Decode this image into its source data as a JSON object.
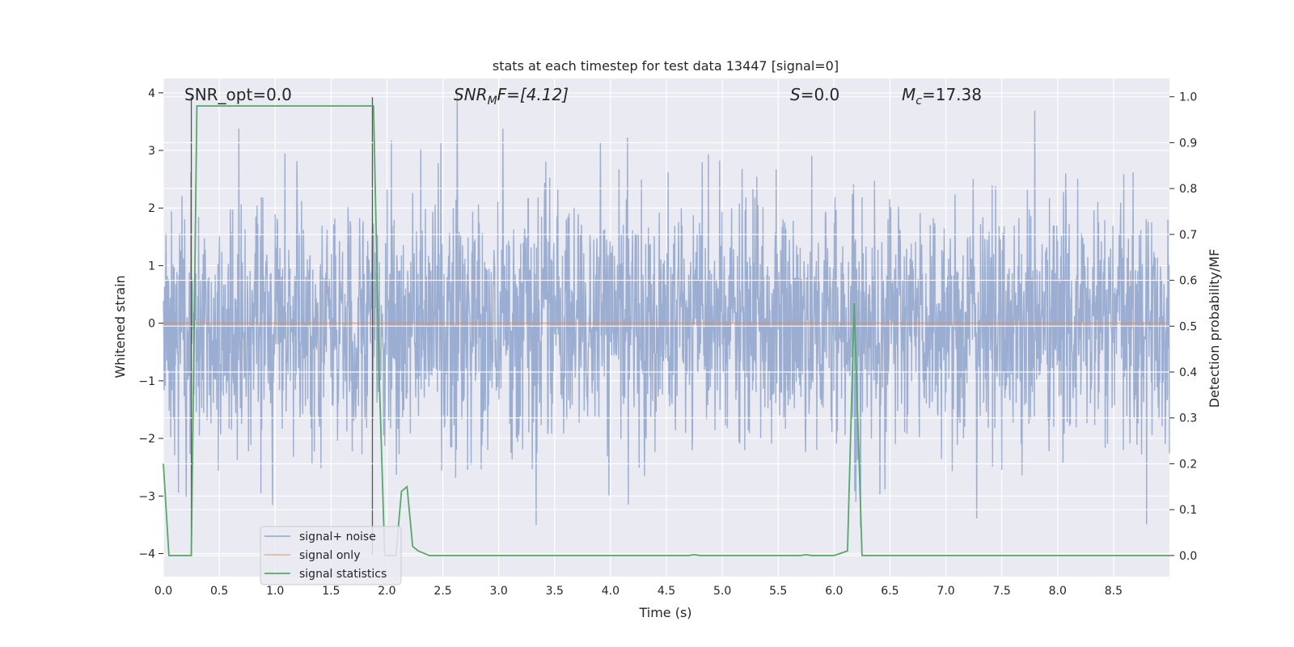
{
  "chart_data": {
    "type": "line",
    "title": "stats at each timestep for test data 13447 [signal=0]",
    "xlabel": "Time (s)",
    "ylabel_left": "Whitened strain",
    "ylabel_right": "Detection probability/MF",
    "xlim": [
      0.0,
      9.0
    ],
    "ylim_left": [
      -4.4,
      4.25
    ],
    "ylim_right": [
      -0.046,
      1.04
    ],
    "x_ticks": [
      "0.0",
      "0.5",
      "1.0",
      "1.5",
      "2.0",
      "2.5",
      "3.0",
      "3.5",
      "4.0",
      "4.5",
      "5.0",
      "5.5",
      "6.0",
      "6.5",
      "7.0",
      "7.5",
      "8.0",
      "8.5"
    ],
    "y_ticks_left": [
      "4",
      "3",
      "2",
      "1",
      "0",
      "−1",
      "−2",
      "−3",
      "−4"
    ],
    "y_ticks_right": [
      "1.0",
      "0.9",
      "0.8",
      "0.7",
      "0.6",
      "0.5",
      "0.4",
      "0.3",
      "0.2",
      "0.1",
      "0.0"
    ],
    "annotations": {
      "snr_opt": "SNR_opt=0.0",
      "snr_mf_sym": "SNR",
      "snr_mf_sub": "M",
      "snr_mf_rest": "F=[4.12]",
      "s_sym": "S",
      "s_rest": "=0.0",
      "mc_sym": "M",
      "mc_sub": "c",
      "mc_rest": "=17.38"
    },
    "legend": {
      "position": "lower-left",
      "entries": [
        "signal+ noise",
        "signal only",
        "signal statistics"
      ]
    },
    "series": [
      {
        "name": "signal+ noise",
        "axis": "left",
        "color": "#4c72b0",
        "description": "whitened strain noise, roughly Gaussian, sigma ~1",
        "amplitude_envelope": 4.0
      },
      {
        "name": "signal only",
        "axis": "left",
        "color": "#dd8452",
        "x": [
          0.0,
          9.0
        ],
        "y": [
          0.0,
          0.0
        ]
      },
      {
        "name": "signal statistics",
        "axis": "right",
        "color": "#55a868",
        "x": [
          0.0,
          0.05,
          0.1,
          0.15,
          0.2,
          0.25,
          0.3,
          0.35,
          0.4,
          0.5,
          0.6,
          0.7,
          0.8,
          0.9,
          1.0,
          1.2,
          1.4,
          1.6,
          1.8,
          1.88,
          1.93,
          1.98,
          2.03,
          2.08,
          2.13,
          2.18,
          2.23,
          2.28,
          2.33,
          2.38,
          2.5,
          3.0,
          3.5,
          4.0,
          4.5,
          4.7,
          4.75,
          4.8,
          5.0,
          5.5,
          5.7,
          5.75,
          5.8,
          6.0,
          6.12,
          6.18,
          6.25,
          6.3,
          7.0,
          8.0,
          9.0
        ],
        "y": [
          0.2,
          0.0,
          0.0,
          0.0,
          0.0,
          0.0,
          0.98,
          0.98,
          0.98,
          0.98,
          0.98,
          0.98,
          0.98,
          0.98,
          0.98,
          0.98,
          0.98,
          0.98,
          0.98,
          0.98,
          0.4,
          0.0,
          0.0,
          0.0,
          0.14,
          0.15,
          0.02,
          0.01,
          0.005,
          0.0,
          0.0,
          0.0,
          0.0,
          0.0,
          0.0,
          0.0,
          0.002,
          0.0,
          0.0,
          0.0,
          0.0,
          0.002,
          0.0,
          0.0,
          0.01,
          0.55,
          0.0,
          0.0,
          0.0,
          0.0,
          0.0
        ]
      }
    ],
    "vertical_markers": [
      0.25,
      1.87
    ]
  }
}
